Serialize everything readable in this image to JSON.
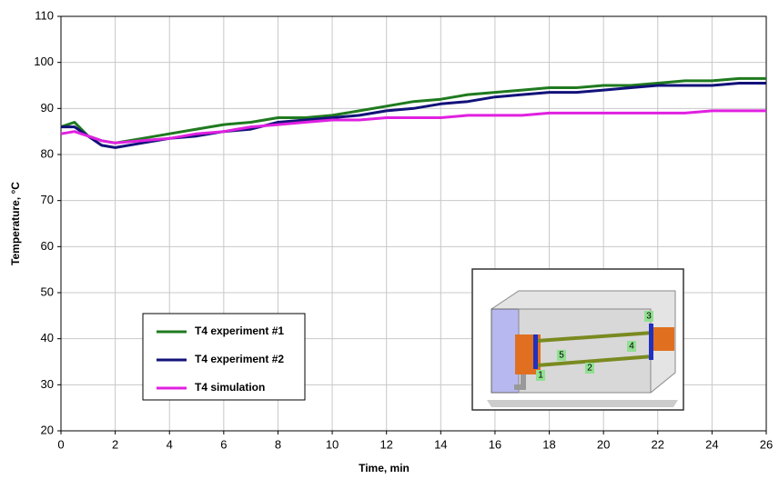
{
  "chart_data": {
    "type": "line",
    "x_label": "Time, min",
    "y_label": "Temperature, °C",
    "x": [
      0,
      0.5,
      1,
      1.5,
      2,
      3,
      4,
      5,
      6,
      7,
      8,
      9,
      10,
      11,
      12,
      13,
      14,
      15,
      16,
      17,
      18,
      19,
      20,
      21,
      22,
      23,
      24,
      25,
      26
    ],
    "series": [
      {
        "name": "T4 experiment #1",
        "color": "#1f7a1f",
        "values": [
          86,
          87,
          84,
          83,
          82.5,
          83.5,
          84.5,
          85.5,
          86.5,
          87,
          88,
          88,
          88.5,
          89.5,
          90.5,
          91.5,
          92,
          93,
          93.5,
          94,
          94.5,
          94.5,
          95,
          95,
          95.5,
          96,
          96,
          96.5,
          96.5
        ]
      },
      {
        "name": "T4 experiment #2",
        "color": "#12127a",
        "values": [
          86,
          86,
          84,
          82,
          81.5,
          82.5,
          83.5,
          84,
          85,
          85.5,
          87,
          87.5,
          88,
          88.5,
          89.5,
          90,
          91,
          91.5,
          92.5,
          93,
          93.5,
          93.5,
          94,
          94.5,
          95,
          95,
          95,
          95.5,
          95.5
        ]
      },
      {
        "name": "T4 simulation",
        "color": "#e020e0",
        "values": [
          84.5,
          85,
          84,
          83,
          82.5,
          83,
          83.5,
          84.5,
          85,
          86,
          86.5,
          87,
          87.5,
          87.5,
          88,
          88,
          88,
          88.5,
          88.5,
          88.5,
          89,
          89,
          89,
          89,
          89,
          89,
          89.5,
          89.5,
          89.5
        ]
      }
    ],
    "xlim": [
      0,
      26
    ],
    "xticks": [
      0,
      2,
      4,
      6,
      8,
      10,
      12,
      14,
      16,
      18,
      20,
      22,
      24,
      26
    ],
    "ylim": [
      20,
      110
    ],
    "yticks": [
      20,
      30,
      40,
      50,
      60,
      70,
      80,
      90,
      100,
      110
    ],
    "grid": true,
    "inset_labels": [
      "1",
      "2",
      "3",
      "4",
      "5"
    ]
  }
}
